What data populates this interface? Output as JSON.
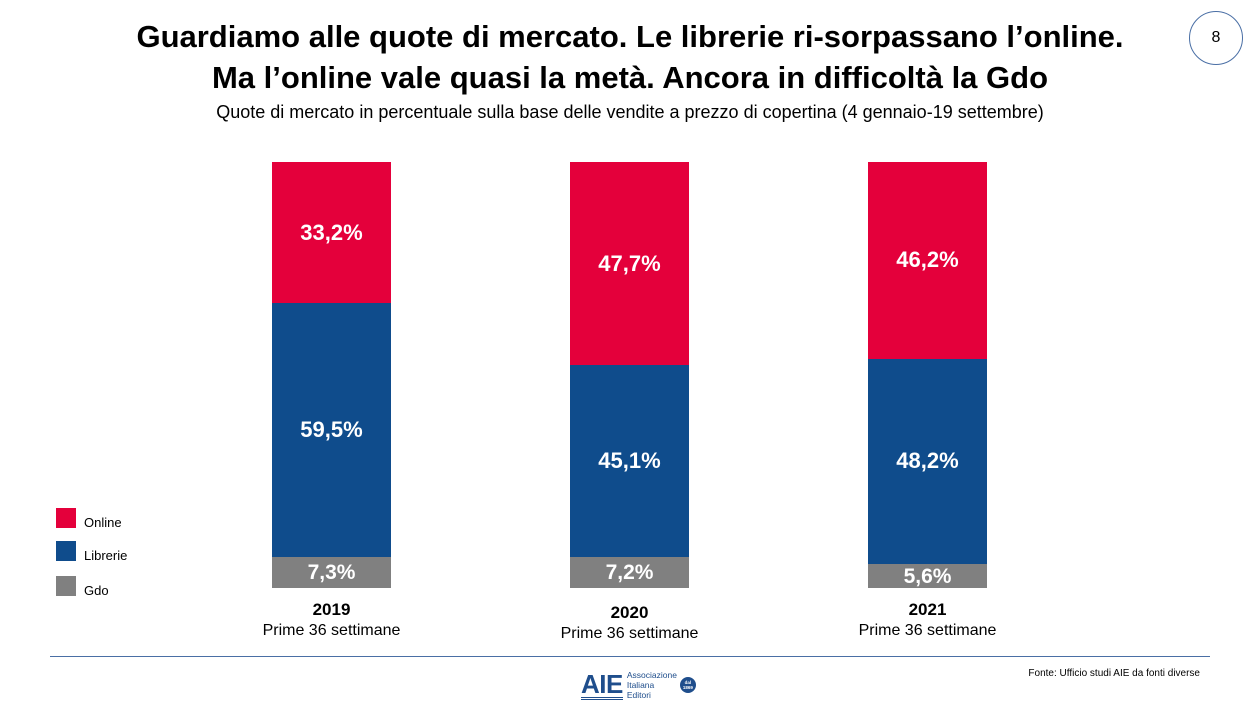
{
  "header": {
    "title_line1": "Guardiamo alle quote di mercato. Le librerie ri-sorpassano l’online.",
    "title_line2": "Ma l’online vale quasi la metà. Ancora in difficoltà la Gdo",
    "subtitle": "Quote di mercato in percentuale sulla base delle vendite a prezzo di copertina (4 gennaio-19 settembre)",
    "page_number": "8"
  },
  "chart_data": {
    "type": "bar",
    "stacked": true,
    "normalized_to": 100,
    "categories": [
      "2019",
      "2020",
      "2021"
    ],
    "category_sublabels": [
      "Prime 36 settimane",
      "Prime 36 settimane",
      "Prime 36 settimane"
    ],
    "series": [
      {
        "name": "Gdo",
        "color": "#808080",
        "values": [
          7.3,
          7.2,
          5.6
        ],
        "labels": [
          "7,3%",
          "7,2%",
          "5,6%"
        ]
      },
      {
        "name": "Librerie",
        "color": "#0f4c8c",
        "values": [
          59.5,
          45.1,
          48.2
        ],
        "labels": [
          "59,5%",
          "45,1%",
          "48,2%"
        ]
      },
      {
        "name": "Online",
        "color": "#e4003b",
        "values": [
          33.2,
          47.7,
          46.2
        ],
        "labels": [
          "33,2%",
          "47,7%",
          "46,2%"
        ]
      }
    ],
    "legend": {
      "position": "bottom-left",
      "order": [
        "Online",
        "Librerie",
        "Gdo"
      ]
    },
    "grid": false
  },
  "footer": {
    "source": "Fonte: Ufficio studi AIE da fonti diverse",
    "logo": {
      "mark": "AIE",
      "line1": "Associazione",
      "line2": "Italiana",
      "line3": "Editori",
      "seal_line1": "dal",
      "seal_line2": "1869"
    }
  }
}
